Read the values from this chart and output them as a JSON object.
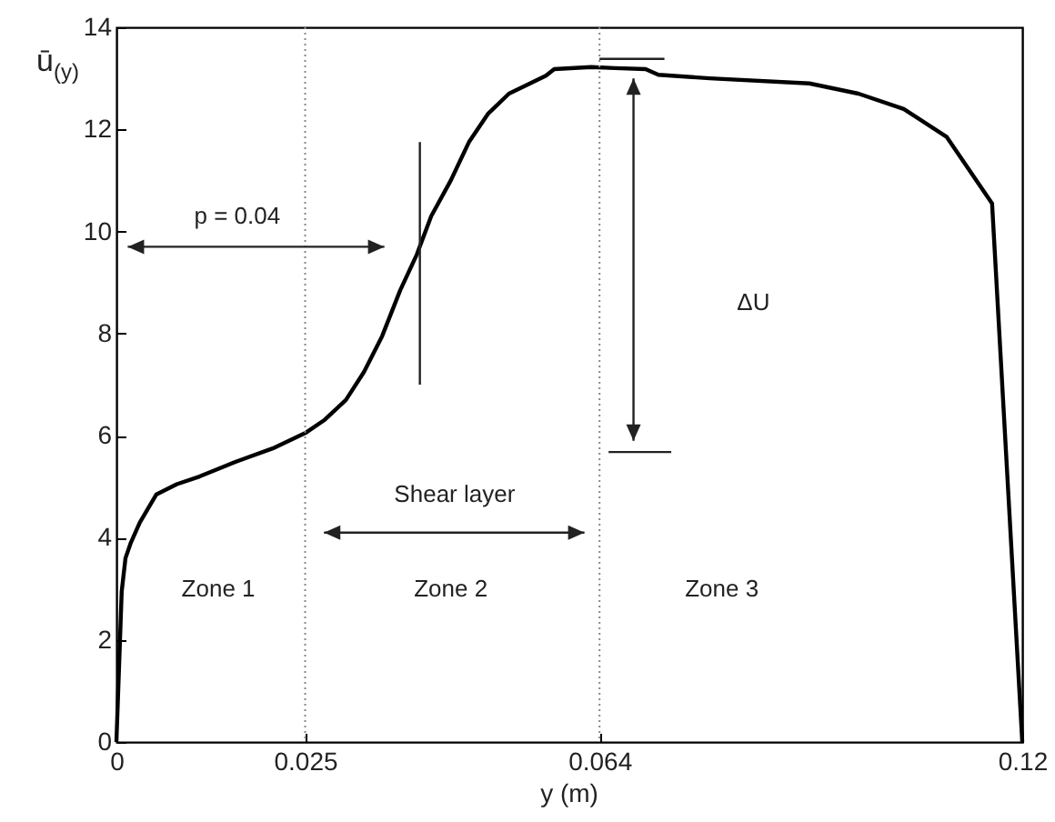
{
  "chart_data": {
    "type": "line",
    "xlabel": "y (m)",
    "ylabel": "ū$_{(y)}$",
    "x": [
      0,
      0.0007,
      0.0012,
      0.0019,
      0.0031,
      0.0053,
      0.008,
      0.011,
      0.016,
      0.0207,
      0.025,
      0.0275,
      0.0304,
      0.0328,
      0.0352,
      0.0376,
      0.0398,
      0.0417,
      0.0443,
      0.0467,
      0.0492,
      0.052,
      0.0569,
      0.058,
      0.0629,
      0.066,
      0.0701,
      0.0718,
      0.0786,
      0.0918,
      0.0983,
      0.1043,
      0.11,
      0.116,
      0.12
    ],
    "series": [
      {
        "color": "#000000",
        "values": [
          0,
          2.95,
          3.6,
          3.9,
          4.3,
          4.85,
          5.05,
          5.2,
          5.5,
          5.75,
          6.05,
          6.3,
          6.7,
          7.25,
          7.95,
          8.85,
          9.55,
          10.3,
          11.0,
          11.75,
          12.3,
          12.7,
          13.05,
          13.18,
          13.22,
          13.2,
          13.18,
          13.07,
          13.0,
          12.9,
          12.7,
          12.4,
          11.85,
          10.55,
          0
        ]
      }
    ],
    "xlim": [
      0,
      0.12
    ],
    "xticks": [
      0,
      0.025,
      0.064,
      0.12
    ],
    "ylim": [
      0,
      14
    ],
    "yticks": [
      0,
      2,
      4,
      6,
      8,
      10,
      12,
      14
    ],
    "ref_lines": [
      {
        "axis": "x",
        "value": 0.025,
        "color": "#888888",
        "line_style": "dotted"
      },
      {
        "axis": "x",
        "value": 0.064,
        "color": "#888888",
        "line_style": "dotted"
      }
    ],
    "annotations": [
      "p = 0.04",
      "Shear layer",
      "ΔU",
      "Zone 1",
      "Zone 2",
      "Zone 3"
    ],
    "grid": false,
    "marker": "none",
    "line_style": "solid"
  }
}
